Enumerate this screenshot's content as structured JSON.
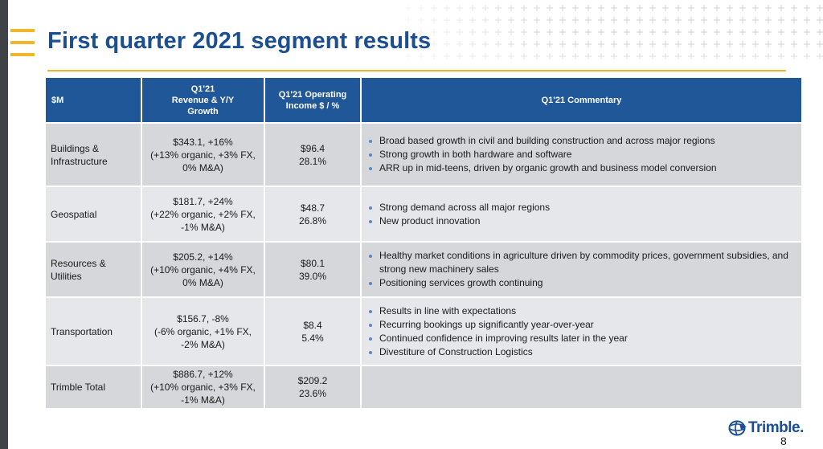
{
  "slide": {
    "title": "First quarter 2021 segment results",
    "page_number": "8",
    "brand_color": "#1c4e92",
    "accent_color": "#f1b52a"
  },
  "table": {
    "headers": {
      "segment": "$M",
      "revenue_line1": "Q1'21",
      "revenue_line2": "Revenue & Y/Y",
      "revenue_line3": "Growth",
      "income_line1": "Q1'21 Operating",
      "income_line2": "Income $ / %",
      "commentary": "Q1'21  Commentary"
    },
    "rows": [
      {
        "segment_line1": "Buildings &",
        "segment_line2": "Infrastructure",
        "revenue_line1": "$343.1, +16%",
        "revenue_line2": "(+13% organic, +3% FX,",
        "revenue_line3": "0% M&A)",
        "income_value": "$96.4",
        "income_pct": "28.1%",
        "commentary": [
          "Broad based growth in civil and building construction and across major regions",
          "Strong growth in both hardware and software",
          "ARR up in mid-teens, driven by organic growth and business model conversion"
        ]
      },
      {
        "segment_line1": "Geospatial",
        "segment_line2": "",
        "revenue_line1": "$181.7, +24%",
        "revenue_line2": "(+22% organic, +2% FX,",
        "revenue_line3": "-1% M&A)",
        "income_value": "$48.7",
        "income_pct": "26.8%",
        "commentary": [
          "Strong demand across all major regions",
          "New product innovation"
        ]
      },
      {
        "segment_line1": "Resources &",
        "segment_line2": "Utilities",
        "revenue_line1": "$205.2, +14%",
        "revenue_line2": "(+10% organic, +4% FX,",
        "revenue_line3": "0% M&A)",
        "income_value": "$80.1",
        "income_pct": "39.0%",
        "commentary": [
          "Healthy market conditions in agriculture driven by commodity prices, government subsidies, and strong new machinery sales",
          "Positioning services growth continuing"
        ]
      },
      {
        "segment_line1": "Transportation",
        "segment_line2": "",
        "revenue_line1": "$156.7, -8%",
        "revenue_line2": "(-6% organic, +1% FX,",
        "revenue_line3": "-2% M&A)",
        "income_value": "$8.4",
        "income_pct": "5.4%",
        "commentary": [
          "Results in line with expectations",
          "Recurring bookings up significantly year-over-year",
          "Continued confidence in improving results later in the year",
          "Divestiture of Construction Logistics"
        ]
      },
      {
        "segment_line1": "Trimble Total",
        "segment_line2": "",
        "revenue_line1": "$886.7, +12%",
        "revenue_line2": "(+10% organic, +3% FX,",
        "revenue_line3": "-1% M&A)",
        "income_value": "$209.2",
        "income_pct": "23.6%",
        "commentary": []
      }
    ]
  },
  "logo": {
    "icon": "trimble-globe-icon",
    "text": "Trimble",
    "suffix": "."
  }
}
